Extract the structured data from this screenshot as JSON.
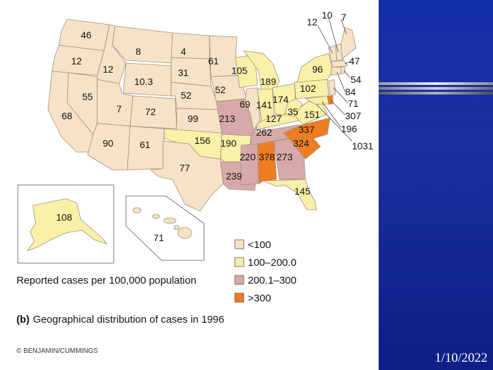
{
  "colors": {
    "low": "#f6e2c6",
    "mid": "#fbf0a8",
    "high": "#d7a9a9",
    "vhigh": "#ee7d22",
    "border": "#9c8f7c",
    "blue_panel": "#1a2fa0"
  },
  "states": {
    "WA": "46",
    "OR": "12",
    "ID": "12",
    "MT": "8",
    "ND": "4",
    "MN": "61",
    "SD": "31",
    "WY": "10.3",
    "NE": "52",
    "IA": "52",
    "WI": "105",
    "MI": "189",
    "NV": "55",
    "UT": "7",
    "CO": "72",
    "KS": "99",
    "CA": "68",
    "AZ": "90",
    "NM": "61",
    "OK": "156",
    "TX": "77",
    "MO": "213",
    "IL": "69",
    "IN": "141",
    "OH": "174",
    "KY": "127",
    "WV": "35",
    "VA": "151",
    "AR": "190",
    "LA": "239",
    "MS": "220",
    "AL": "378",
    "GA": "273",
    "TN": "262",
    "NC": "337",
    "SC": "324",
    "FL": "145",
    "PA": "102",
    "NY": "96",
    "AK": "108",
    "HI": "71"
  },
  "northeast_labels": {
    "VT": "12",
    "NH": "10",
    "ME": "7",
    "MA": "47",
    "RI": "54",
    "CT": "84",
    "NJ": "71",
    "DE": "307",
    "MD": "196",
    "DC": "1031"
  },
  "legend": {
    "items": [
      {
        "label": "<100",
        "color_key": "low"
      },
      {
        "label": "100–200.0",
        "color_key": "mid"
      },
      {
        "label": "200.1–300",
        "color_key": "high"
      },
      {
        "label": ">300",
        "color_key": "vhigh"
      }
    ]
  },
  "caption": {
    "reported": "Reported cases per 100,000 population",
    "figure_prefix": "(b)",
    "figure_title": "Geographical distribution of cases in 1996",
    "copyright": "© BENJAMIN/CUMMINGS"
  },
  "slide": {
    "date": "1/10/2022"
  }
}
